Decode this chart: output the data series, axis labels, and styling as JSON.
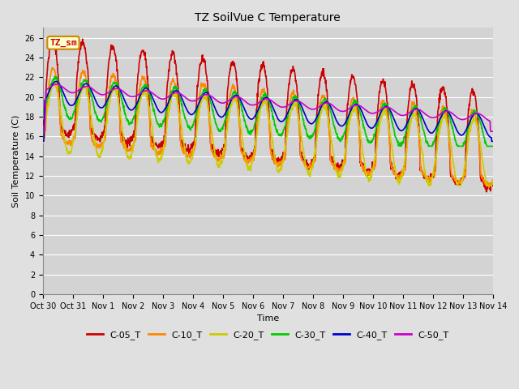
{
  "title": "TZ SoilVue C Temperature",
  "xlabel": "Time",
  "ylabel": "Soil Temperature (C)",
  "ylim": [
    0,
    27
  ],
  "yticks": [
    0,
    2,
    4,
    6,
    8,
    10,
    12,
    14,
    16,
    18,
    20,
    22,
    24,
    26
  ],
  "x_labels": [
    "Oct 30",
    "Oct 31",
    "Nov 1",
    "Nov 2",
    "Nov 3",
    "Nov 4",
    "Nov 5",
    "Nov 6",
    "Nov 7",
    "Nov 8",
    "Nov 9",
    "Nov 10",
    "Nov 11",
    "Nov 12",
    "Nov 13",
    "Nov 14"
  ],
  "num_days": 15,
  "fig_width": 6.4,
  "fig_height": 4.8,
  "dpi": 100,
  "background_color": "#e0e0e0",
  "plot_bg_color": "#d3d3d3",
  "grid_color": "#ffffff",
  "legend_entries": [
    "C-05_T",
    "C-10_T",
    "C-20_T",
    "C-30_T",
    "C-40_T",
    "C-50_T"
  ],
  "line_colors": [
    "#cc0000",
    "#ff8800",
    "#cccc00",
    "#00cc00",
    "#0000cc",
    "#cc00cc"
  ],
  "line_widths": [
    1.2,
    1.2,
    1.2,
    1.2,
    1.2,
    1.2
  ],
  "annotation_text": "TZ_sm",
  "annotation_color": "#cc0000",
  "annotation_bg": "#ffffcc",
  "annotation_border": "#cc8800",
  "title_fontsize": 10,
  "label_fontsize": 8,
  "tick_fontsize": 7,
  "legend_fontsize": 8
}
